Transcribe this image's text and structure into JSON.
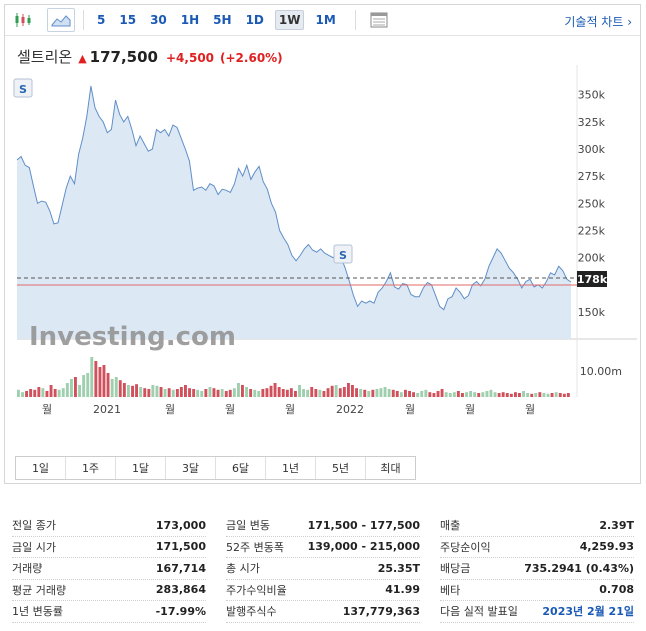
{
  "toolbar": {
    "timeframes": [
      "5",
      "15",
      "30",
      "1H",
      "5H",
      "1D",
      "1W",
      "1M"
    ],
    "active_timeframe": "1W",
    "technical_chart_label": "기술적 차트 ›"
  },
  "quote": {
    "name": "셀트리온",
    "arrow": "▲",
    "price": "177,500",
    "change": "+4,500",
    "change_pct": "(+2.60%)"
  },
  "colors": {
    "line": "#5f8fc8",
    "area": "#dde8f5",
    "up_volume": "#9fcfae",
    "down_volume": "#d0505c",
    "last_price_line": "#e06a6a",
    "link": "#1a5ab5"
  },
  "watermark": "Investing.com",
  "last_price_badge": "178k",
  "markers": [
    "S",
    "S"
  ],
  "range_buttons": [
    "1일",
    "1주",
    "1달",
    "3달",
    "6달",
    "1년",
    "5년",
    "최대"
  ],
  "chart_data": {
    "type": "area",
    "price_ticks": [
      "350k",
      "325k",
      "300k",
      "275k",
      "250k",
      "225k",
      "200k",
      "150k"
    ],
    "price_tick_values": [
      350000,
      325000,
      300000,
      275000,
      250000,
      225000,
      200000,
      150000
    ],
    "ylim": [
      125000,
      370000
    ],
    "volume_tick": "10.00m",
    "x_ticks": [
      "월",
      "2021",
      "월",
      "월",
      "월",
      "월",
      "2022",
      "월",
      "월",
      "월",
      "월"
    ],
    "price_series": [
      290000,
      293000,
      285000,
      283000,
      266000,
      250000,
      252000,
      251000,
      243000,
      231000,
      232000,
      248000,
      264000,
      275000,
      268000,
      295000,
      310000,
      330000,
      358000,
      338000,
      330000,
      325000,
      315000,
      318000,
      345000,
      332000,
      325000,
      330000,
      318000,
      303000,
      312000,
      305000,
      298000,
      300000,
      318000,
      315000,
      318000,
      312000,
      322000,
      320000,
      310000,
      300000,
      289000,
      262000,
      264000,
      265000,
      262000,
      268000,
      266000,
      258000,
      263000,
      262000,
      260000,
      268000,
      282000,
      275000,
      285000,
      272000,
      279000,
      284000,
      270000,
      263000,
      250000,
      242000,
      225000,
      218000,
      212000,
      202000,
      197000,
      202000,
      208000,
      212000,
      207000,
      205000,
      208000,
      204000,
      202000,
      200000,
      203000,
      200000,
      190000,
      178000,
      165000,
      155000,
      160000,
      158000,
      160000,
      158000,
      168000,
      172000,
      178000,
      186000,
      173000,
      171000,
      176000,
      175000,
      166000,
      164000,
      164000,
      172000,
      177000,
      175000,
      165000,
      155000,
      152000,
      162000,
      164000,
      172000,
      168000,
      162000,
      165000,
      175000,
      178000,
      174000,
      180000,
      192000,
      200000,
      208000,
      204000,
      197000,
      190000,
      186000,
      180000,
      172000,
      178000,
      180000,
      173000,
      175000,
      172000,
      178000,
      186000,
      184000,
      192000,
      188000,
      180000,
      177500
    ],
    "volume_series": [
      0.18,
      0.12,
      0.15,
      0.2,
      0.18,
      0.25,
      0.22,
      0.15,
      0.3,
      0.2,
      0.18,
      0.22,
      0.35,
      0.45,
      0.5,
      0.3,
      0.55,
      0.6,
      1.0,
      0.9,
      0.75,
      0.8,
      0.6,
      0.45,
      0.5,
      0.42,
      0.35,
      0.3,
      0.28,
      0.32,
      0.25,
      0.22,
      0.2,
      0.3,
      0.28,
      0.25,
      0.2,
      0.22,
      0.18,
      0.2,
      0.25,
      0.3,
      0.22,
      0.2,
      0.18,
      0.15,
      0.2,
      0.25,
      0.22,
      0.18,
      0.2,
      0.15,
      0.18,
      0.22,
      0.35,
      0.3,
      0.25,
      0.2,
      0.18,
      0.15,
      0.2,
      0.22,
      0.28,
      0.35,
      0.25,
      0.2,
      0.18,
      0.22,
      0.15,
      0.3,
      0.2,
      0.18,
      0.25,
      0.2,
      0.18,
      0.15,
      0.22,
      0.28,
      0.3,
      0.22,
      0.25,
      0.35,
      0.3,
      0.22,
      0.2,
      0.18,
      0.15,
      0.18,
      0.2,
      0.22,
      0.25,
      0.2,
      0.18,
      0.15,
      0.12,
      0.18,
      0.15,
      0.12,
      0.1,
      0.15,
      0.18,
      0.12,
      0.1,
      0.15,
      0.2,
      0.12,
      0.1,
      0.12,
      0.15,
      0.1,
      0.12,
      0.15,
      0.12,
      0.1,
      0.12,
      0.15,
      0.18,
      0.12,
      0.1,
      0.12,
      0.1,
      0.08,
      0.12,
      0.1,
      0.15,
      0.1,
      0.08,
      0.1,
      0.12,
      0.1,
      0.08,
      0.1,
      0.12,
      0.1,
      0.08,
      0.1
    ]
  },
  "stats": {
    "col1": [
      {
        "label": "전일 종가",
        "value": "173,000"
      },
      {
        "label": "금일 시가",
        "value": "171,500"
      },
      {
        "label": "거래량",
        "value": "167,714"
      },
      {
        "label": "평균 거래량",
        "value": "283,864"
      },
      {
        "label": "1년 변동률",
        "value": "-17.99%"
      }
    ],
    "col2": [
      {
        "label": "금일 변동",
        "value": "171,500 - 177,500"
      },
      {
        "label": "52주 변동폭",
        "value": "139,000 - 215,000"
      },
      {
        "label": "총 시가",
        "value": "25.35T"
      },
      {
        "label": "주가수익비율",
        "value": "41.99"
      },
      {
        "label": "발행주식수",
        "value": "137,779,363"
      }
    ],
    "col3": [
      {
        "label": "매출",
        "value": "2.39T"
      },
      {
        "label": "주당순이익",
        "value": "4,259.93"
      },
      {
        "label": "배당금",
        "value": "735.2941 (0.43%)"
      },
      {
        "label": "베타",
        "value": "0.708"
      },
      {
        "label": "다음 실적 발표일",
        "value": "2023년 2월 21일"
      }
    ]
  }
}
